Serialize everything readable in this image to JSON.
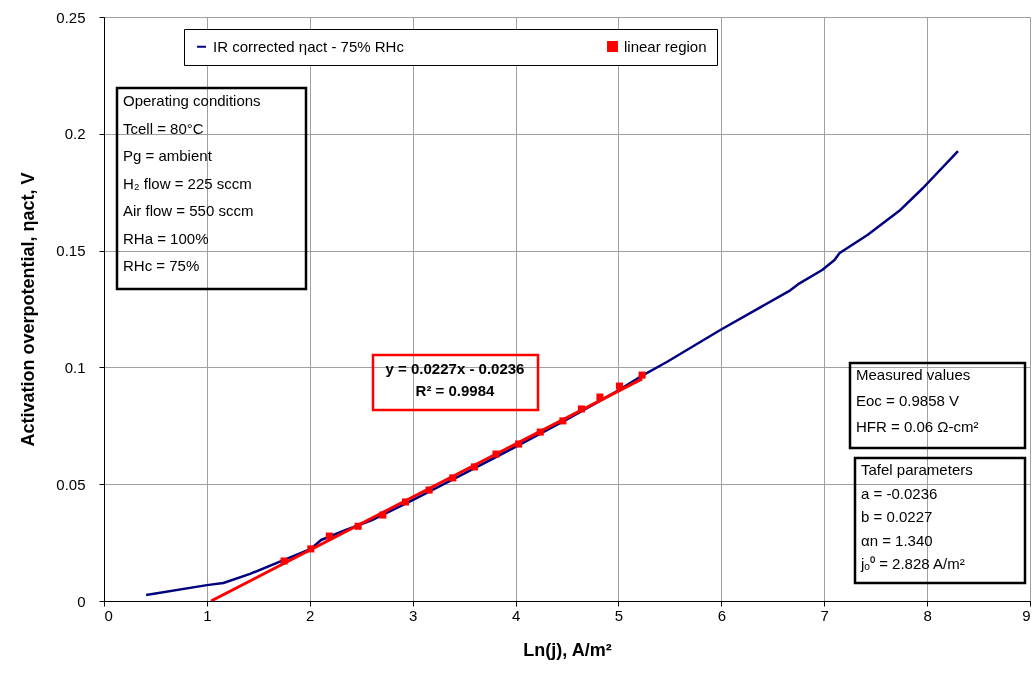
{
  "chart_data": {
    "type": "line",
    "xlabel": "Ln(j), A/m²",
    "ylabel": "Activation overpotential, ηact, V",
    "xlim": [
      0,
      9
    ],
    "xticks": [
      0,
      1,
      2,
      3,
      4,
      5,
      6,
      7,
      8,
      9
    ],
    "ylim": [
      0,
      0.25
    ],
    "yticks": [
      0,
      0.05,
      0.1,
      0.15,
      0.2,
      0.25
    ],
    "grid": true,
    "legend": "top",
    "series": [
      {
        "name": "IR corrected ηact - 75% RHc",
        "color": "#000080",
        "marker": "none",
        "x": [
          0.41,
          1.0,
          1.16,
          1.42,
          2.01,
          2.11,
          2.35,
          2.6,
          3.0,
          3.5,
          4.0,
          4.5,
          5.0,
          5.24,
          5.47,
          5.99,
          6.67,
          6.76,
          6.98,
          7.1,
          7.15,
          7.42,
          7.74,
          7.96,
          8.3
        ],
        "values": [
          0.0026,
          0.0068,
          0.0077,
          0.0116,
          0.0223,
          0.0261,
          0.0304,
          0.0345,
          0.0432,
          0.0545,
          0.066,
          0.0777,
          0.0902,
          0.0967,
          0.1023,
          0.116,
          0.133,
          0.136,
          0.1417,
          0.146,
          0.149,
          0.1567,
          0.1674,
          0.1768,
          0.1926
        ]
      },
      {
        "name": "linear region",
        "type": "scatter",
        "color": "#ff0000",
        "marker": "square",
        "x": [
          1.75,
          2.01,
          2.19,
          2.47,
          2.71,
          2.93,
          3.16,
          3.39,
          3.6,
          3.81,
          4.03,
          4.24,
          4.46,
          4.64,
          4.82,
          5.01,
          5.23
        ],
        "values": [
          0.0171,
          0.0223,
          0.0278,
          0.032,
          0.0368,
          0.0424,
          0.0475,
          0.0527,
          0.0574,
          0.0629,
          0.0672,
          0.0723,
          0.0771,
          0.0822,
          0.0873,
          0.092,
          0.0967
        ]
      },
      {
        "color": "#ff0000",
        "marker": "none",
        "x": [
          1.04,
          5.23
        ],
        "values": [
          0.0,
          0.0951
        ]
      }
    ],
    "annotations": [
      "y = 0.0227x - 0.0236\nR² = 0.9984",
      "Operating conditions\nTcell = 80°C\nPg = ambient\nH₂ flow = 225 sccm\nAir flow = 550 sccm\nRHa = 100%\nRHc = 75%",
      "Measured values\nEoc = 0.9858 V\nHFR = 0.06 Ω-cm²",
      "Tafel parameters\na = -0.0236\nb = 0.0227\nαn = 1.340\njₒ⁰ = 2.828 A/m²"
    ]
  }
}
